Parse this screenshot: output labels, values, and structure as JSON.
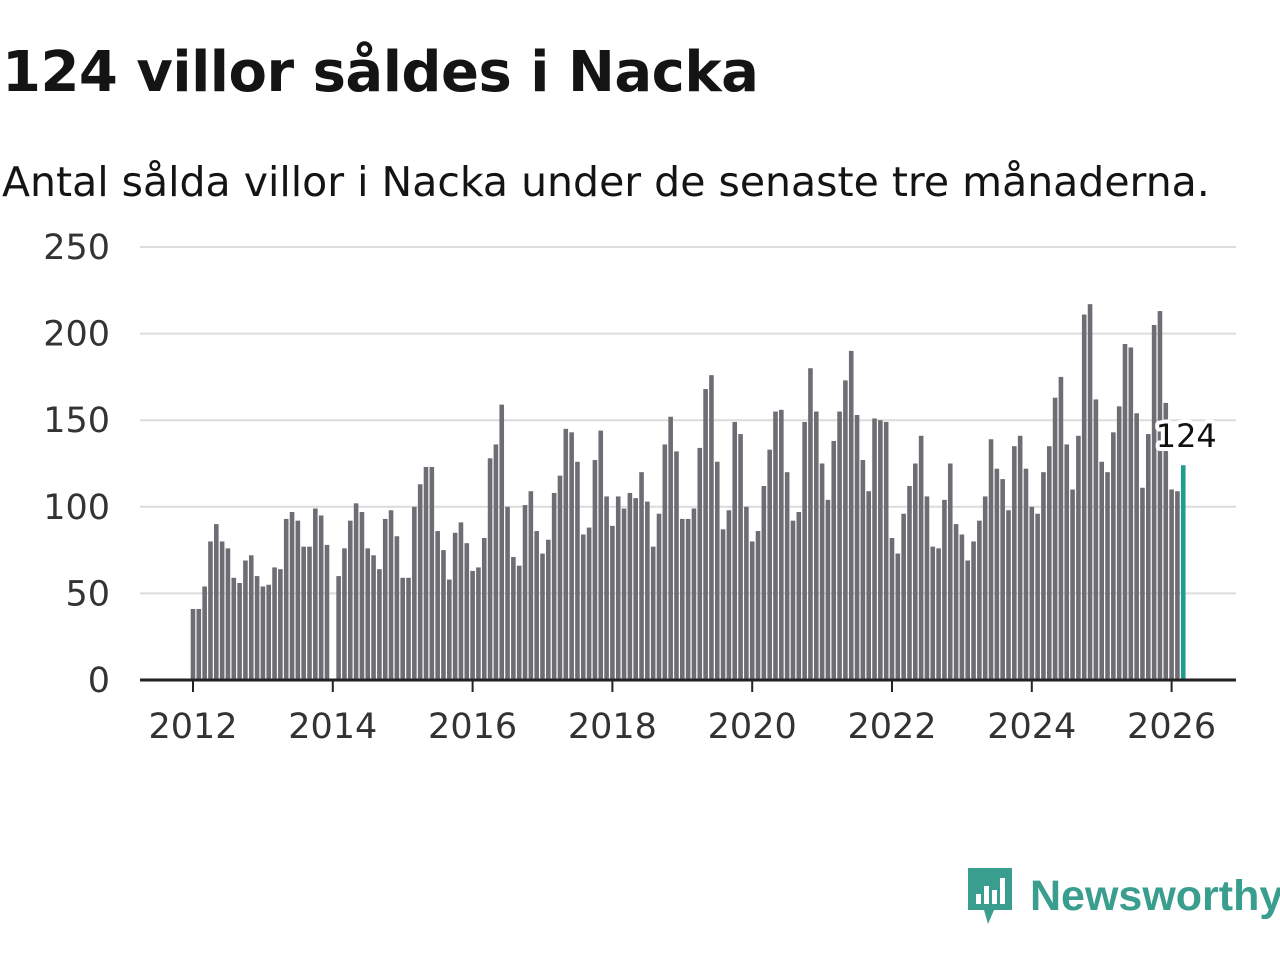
{
  "header": {
    "title": "124 villor såldes i Nacka",
    "subtitle": "Antal sålda villor i Nacka under de senaste tre månaderna."
  },
  "brand": {
    "name": "Newsworthy",
    "icon": "newsworthy-logo-icon"
  },
  "colors": {
    "bar": "#6e6d73",
    "highlight": "#1f9e8e",
    "grid": "#dcdcdc",
    "axis": "#222222"
  },
  "chart_data": {
    "type": "bar",
    "title": "124 villor såldes i Nacka",
    "subtitle": "Antal sålda villor i Nacka under de senaste tre månaderna.",
    "xlabel": "",
    "ylabel": "",
    "ylim": [
      0,
      250
    ],
    "yticks": [
      0,
      50,
      100,
      150,
      200,
      250
    ],
    "xticks": [
      "2012",
      "2014",
      "2016",
      "2018",
      "2020",
      "2022",
      "2024",
      "2026"
    ],
    "xtick_positions": [
      2012,
      2014,
      2016,
      2018,
      2020,
      2022,
      2024,
      2026
    ],
    "x_start": 2012.0,
    "x_step_months": 1,
    "grid": true,
    "values": [
      41,
      41,
      54,
      80,
      90,
      80,
      76,
      59,
      56,
      69,
      72,
      60,
      54,
      55,
      65,
      64,
      93,
      97,
      92,
      77,
      77,
      99,
      95,
      78,
      null,
      60,
      76,
      92,
      102,
      97,
      76,
      72,
      64,
      93,
      98,
      83,
      59,
      59,
      100,
      113,
      123,
      123,
      86,
      75,
      58,
      85,
      91,
      79,
      63,
      65,
      82,
      128,
      136,
      159,
      100,
      71,
      66,
      101,
      109,
      86,
      73,
      81,
      108,
      118,
      145,
      143,
      126,
      84,
      88,
      127,
      144,
      106,
      89,
      106,
      99,
      108,
      105,
      120,
      103,
      77,
      96,
      136,
      152,
      132,
      93,
      93,
      99,
      134,
      168,
      176,
      126,
      87,
      98,
      149,
      142,
      100,
      80,
      86,
      112,
      133,
      155,
      156,
      120,
      92,
      97,
      149,
      180,
      155,
      125,
      104,
      138,
      155,
      173,
      190,
      153,
      127,
      109,
      151,
      150,
      149,
      82,
      73,
      96,
      112,
      125,
      141,
      106,
      77,
      76,
      104,
      125,
      90,
      84,
      69,
      80,
      92,
      106,
      139,
      122,
      116,
      98,
      135,
      141,
      122,
      100,
      96,
      120,
      135,
      163,
      175,
      136,
      110,
      141,
      211,
      217,
      162,
      126,
      120,
      143,
      158,
      194,
      192,
      154,
      111,
      142,
      205,
      213,
      160,
      110,
      109,
      124
    ],
    "highlight": {
      "label": "124",
      "value": 124,
      "index": 170
    }
  }
}
